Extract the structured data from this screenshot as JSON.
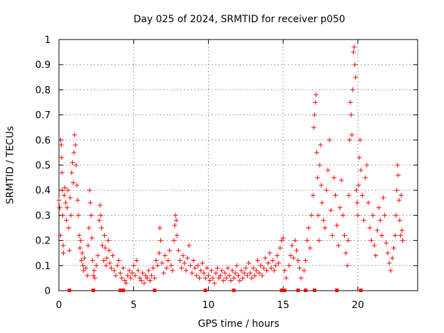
{
  "chart_data": {
    "type": "scatter",
    "title": "Day 025 of 2024, SRMTID for receiver p050",
    "xlabel": "GPS time / hours",
    "ylabel": "SRMTID / TECUs",
    "xlim": [
      0,
      24
    ],
    "ylim": [
      0,
      1
    ],
    "xticks": [
      0,
      5,
      10,
      15,
      20
    ],
    "xtick_labels": [
      "0",
      "5",
      "10",
      "15",
      "20"
    ],
    "yticks": [
      0,
      0.1,
      0.2,
      0.3,
      0.4,
      0.5,
      0.6,
      0.7,
      0.8,
      0.9,
      1
    ],
    "ytick_labels": [
      "0",
      "0.1",
      "0.2",
      "0.3",
      "0.4",
      "0.5",
      "0.6",
      "0.7",
      "0.8",
      "0.9",
      "1"
    ],
    "grid": true,
    "marker": "+",
    "color": "#ff0000",
    "series": [
      {
        "name": "SRMTID",
        "points": [
          [
            0.0,
            0.36
          ],
          [
            0.05,
            0.33
          ],
          [
            0.1,
            0.22
          ],
          [
            0.12,
            0.6
          ],
          [
            0.15,
            0.58
          ],
          [
            0.18,
            0.53
          ],
          [
            0.2,
            0.47
          ],
          [
            0.22,
            0.4
          ],
          [
            0.25,
            0.3
          ],
          [
            0.28,
            0.18
          ],
          [
            0.3,
            0.15
          ],
          [
            0.35,
            0.38
          ],
          [
            0.4,
            0.41
          ],
          [
            0.45,
            0.35
          ],
          [
            0.5,
            0.28
          ],
          [
            0.55,
            0.33
          ],
          [
            0.6,
            0.4
          ],
          [
            0.65,
            0.25
          ],
          [
            0.7,
            0.16
          ],
          [
            0.75,
            0.37
          ],
          [
            0.8,
            0.3
          ],
          [
            0.85,
            0.47
          ],
          [
            0.9,
            0.51
          ],
          [
            0.95,
            0.43
          ],
          [
            1.0,
            0.55
          ],
          [
            1.05,
            0.62
          ],
          [
            1.1,
            0.58
          ],
          [
            1.15,
            0.5
          ],
          [
            1.2,
            0.42
          ],
          [
            1.25,
            0.36
          ],
          [
            1.3,
            0.3
          ],
          [
            1.35,
            0.22
          ],
          [
            1.4,
            0.17
          ],
          [
            1.45,
            0.2
          ],
          [
            1.5,
            0.12
          ],
          [
            1.55,
            0.15
          ],
          [
            1.6,
            0.1
          ],
          [
            1.65,
            0.08
          ],
          [
            1.7,
            0.13
          ],
          [
            1.8,
            0.09
          ],
          [
            1.9,
            0.06
          ],
          [
            1.95,
            0.18
          ],
          [
            2.0,
            0.25
          ],
          [
            2.05,
            0.4
          ],
          [
            2.1,
            0.35
          ],
          [
            2.15,
            0.3
          ],
          [
            2.2,
            0.21
          ],
          [
            2.25,
            0.12
          ],
          [
            2.3,
            0.06
          ],
          [
            2.35,
            0.08
          ],
          [
            2.4,
            0.05
          ],
          [
            2.5,
            0.1
          ],
          [
            2.6,
            0.14
          ],
          [
            2.7,
            0.28
          ],
          [
            2.75,
            0.34
          ],
          [
            2.8,
            0.3
          ],
          [
            2.85,
            0.25
          ],
          [
            2.9,
            0.18
          ],
          [
            3.0,
            0.12
          ],
          [
            3.05,
            0.22
          ],
          [
            3.1,
            0.17
          ],
          [
            3.15,
            0.1
          ],
          [
            3.2,
            0.13
          ],
          [
            3.3,
            0.2
          ],
          [
            3.35,
            0.16
          ],
          [
            3.4,
            0.11
          ],
          [
            3.5,
            0.09
          ],
          [
            3.6,
            0.14
          ],
          [
            3.7,
            0.08
          ],
          [
            3.8,
            0.06
          ],
          [
            3.9,
            0.1
          ],
          [
            4.0,
            0.12
          ],
          [
            4.1,
            0.07
          ],
          [
            4.2,
            0.05
          ],
          [
            4.3,
            0.09
          ],
          [
            4.4,
            0.04
          ],
          [
            4.5,
            0.03
          ],
          [
            4.6,
            0.06
          ],
          [
            4.7,
            0.08
          ],
          [
            4.8,
            0.05
          ],
          [
            4.9,
            0.07
          ],
          [
            5.0,
            0.1
          ],
          [
            5.1,
            0.06
          ],
          [
            5.2,
            0.12
          ],
          [
            5.3,
            0.08
          ],
          [
            5.4,
            0.05
          ],
          [
            5.5,
            0.04
          ],
          [
            5.6,
            0.07
          ],
          [
            5.7,
            0.03
          ],
          [
            5.8,
            0.06
          ],
          [
            5.9,
            0.05
          ],
          [
            6.0,
            0.08
          ],
          [
            6.1,
            0.04
          ],
          [
            6.2,
            0.06
          ],
          [
            6.3,
            0.09
          ],
          [
            6.4,
            0.05
          ],
          [
            6.5,
            0.12
          ],
          [
            6.6,
            0.1
          ],
          [
            6.7,
            0.15
          ],
          [
            6.75,
            0.25
          ],
          [
            6.8,
            0.2
          ],
          [
            6.9,
            0.11
          ],
          [
            7.0,
            0.07
          ],
          [
            7.1,
            0.14
          ],
          [
            7.2,
            0.09
          ],
          [
            7.3,
            0.12
          ],
          [
            7.4,
            0.16
          ],
          [
            7.5,
            0.1
          ],
          [
            7.6,
            0.08
          ],
          [
            7.7,
            0.2
          ],
          [
            7.75,
            0.26
          ],
          [
            7.8,
            0.3
          ],
          [
            7.85,
            0.28
          ],
          [
            7.9,
            0.22
          ],
          [
            8.0,
            0.16
          ],
          [
            8.1,
            0.12
          ],
          [
            8.2,
            0.09
          ],
          [
            8.3,
            0.14
          ],
          [
            8.4,
            0.11
          ],
          [
            8.5,
            0.08
          ],
          [
            8.6,
            0.13
          ],
          [
            8.7,
            0.18
          ],
          [
            8.8,
            0.1
          ],
          [
            8.9,
            0.07
          ],
          [
            9.0,
            0.12
          ],
          [
            9.1,
            0.09
          ],
          [
            9.2,
            0.06
          ],
          [
            9.3,
            0.1
          ],
          [
            9.4,
            0.05
          ],
          [
            9.5,
            0.08
          ],
          [
            9.6,
            0.11
          ],
          [
            9.7,
            0.07
          ],
          [
            9.8,
            0.05
          ],
          [
            9.9,
            0.09
          ],
          [
            10.0,
            0.06
          ],
          [
            10.1,
            0.04
          ],
          [
            10.2,
            0.08
          ],
          [
            10.3,
            0.05
          ],
          [
            10.4,
            0.03
          ],
          [
            10.5,
            0.07
          ],
          [
            10.6,
            0.09
          ],
          [
            10.7,
            0.05
          ],
          [
            10.8,
            0.06
          ],
          [
            10.9,
            0.08
          ],
          [
            11.0,
            0.04
          ],
          [
            11.1,
            0.07
          ],
          [
            11.2,
            0.05
          ],
          [
            11.3,
            0.09
          ],
          [
            11.4,
            0.06
          ],
          [
            11.5,
            0.04
          ],
          [
            11.6,
            0.08
          ],
          [
            11.7,
            0.05
          ],
          [
            11.8,
            0.07
          ],
          [
            11.9,
            0.1
          ],
          [
            12.0,
            0.06
          ],
          [
            12.1,
            0.04
          ],
          [
            12.2,
            0.08
          ],
          [
            12.3,
            0.05
          ],
          [
            12.4,
            0.07
          ],
          [
            12.5,
            0.09
          ],
          [
            12.6,
            0.06
          ],
          [
            12.7,
            0.11
          ],
          [
            12.8,
            0.07
          ],
          [
            12.9,
            0.05
          ],
          [
            13.0,
            0.09
          ],
          [
            13.1,
            0.06
          ],
          [
            13.2,
            0.08
          ],
          [
            13.3,
            0.12
          ],
          [
            13.4,
            0.07
          ],
          [
            13.5,
            0.1
          ],
          [
            13.6,
            0.06
          ],
          [
            13.7,
            0.09
          ],
          [
            13.8,
            0.13
          ],
          [
            13.9,
            0.08
          ],
          [
            14.0,
            0.11
          ],
          [
            14.1,
            0.15
          ],
          [
            14.2,
            0.09
          ],
          [
            14.3,
            0.12
          ],
          [
            14.4,
            0.08
          ],
          [
            14.5,
            0.1
          ],
          [
            14.6,
            0.14
          ],
          [
            14.7,
            0.11
          ],
          [
            14.8,
            0.17
          ],
          [
            14.9,
            0.2
          ],
          [
            15.0,
            0.21
          ],
          [
            15.1,
            0.08
          ],
          [
            15.2,
            0.05
          ],
          [
            15.4,
            0.1
          ],
          [
            15.5,
            0.14
          ],
          [
            15.6,
            0.18
          ],
          [
            15.7,
            0.13
          ],
          [
            15.8,
            0.2
          ],
          [
            15.9,
            0.16
          ],
          [
            16.0,
            0.12
          ],
          [
            16.1,
            0.09
          ],
          [
            16.2,
            0.05
          ],
          [
            16.4,
            0.08
          ],
          [
            16.5,
            0.12
          ],
          [
            16.6,
            0.2
          ],
          [
            16.7,
            0.25
          ],
          [
            16.8,
            0.17
          ],
          [
            16.9,
            0.3
          ],
          [
            17.0,
            0.38
          ],
          [
            17.05,
            0.65
          ],
          [
            17.1,
            0.7
          ],
          [
            17.15,
            0.75
          ],
          [
            17.2,
            0.78
          ],
          [
            17.25,
            0.55
          ],
          [
            17.3,
            0.45
          ],
          [
            17.35,
            0.3
          ],
          [
            17.4,
            0.2
          ],
          [
            17.45,
            0.5
          ],
          [
            17.5,
            0.58
          ],
          [
            17.55,
            0.42
          ],
          [
            17.6,
            0.35
          ],
          [
            17.7,
            0.28
          ],
          [
            17.8,
            0.25
          ],
          [
            17.9,
            0.4
          ],
          [
            18.0,
            0.48
          ],
          [
            18.1,
            0.6
          ],
          [
            18.2,
            0.32
          ],
          [
            18.3,
            0.22
          ],
          [
            18.4,
            0.45
          ],
          [
            18.5,
            0.38
          ],
          [
            18.6,
            0.26
          ],
          [
            18.7,
            0.18
          ],
          [
            18.8,
            0.33
          ],
          [
            18.9,
            0.44
          ],
          [
            19.0,
            0.3
          ],
          [
            19.1,
            0.22
          ],
          [
            19.2,
            0.15
          ],
          [
            19.3,
            0.1
          ],
          [
            19.35,
            0.2
          ],
          [
            19.4,
            0.38
          ],
          [
            19.45,
            0.6
          ],
          [
            19.5,
            0.75
          ],
          [
            19.55,
            0.7
          ],
          [
            19.6,
            0.62
          ],
          [
            19.65,
            0.8
          ],
          [
            19.7,
            0.95
          ],
          [
            19.75,
            0.97
          ],
          [
            19.8,
            0.9
          ],
          [
            19.85,
            0.85
          ],
          [
            19.9,
            0.4
          ],
          [
            19.95,
            0.35
          ],
          [
            20.0,
            0.3
          ],
          [
            20.05,
            0.42
          ],
          [
            20.1,
            0.53
          ],
          [
            20.15,
            0.6
          ],
          [
            20.2,
            0.48
          ],
          [
            20.3,
            0.38
          ],
          [
            20.4,
            0.28
          ],
          [
            20.5,
            0.45
          ],
          [
            20.6,
            0.5
          ],
          [
            20.7,
            0.35
          ],
          [
            20.8,
            0.25
          ],
          [
            20.9,
            0.2
          ],
          [
            21.0,
            0.3
          ],
          [
            21.1,
            0.18
          ],
          [
            21.2,
            0.14
          ],
          [
            21.3,
            0.24
          ],
          [
            21.4,
            0.33
          ],
          [
            21.5,
            0.28
          ],
          [
            21.6,
            0.22
          ],
          [
            21.7,
            0.37
          ],
          [
            21.8,
            0.3
          ],
          [
            21.9,
            0.19
          ],
          [
            22.0,
            0.15
          ],
          [
            22.1,
            0.11
          ],
          [
            22.2,
            0.08
          ],
          [
            22.3,
            0.13
          ],
          [
            22.4,
            0.17
          ],
          [
            22.5,
            0.22
          ],
          [
            22.55,
            0.3
          ],
          [
            22.6,
            0.4
          ],
          [
            22.65,
            0.5
          ],
          [
            22.7,
            0.46
          ],
          [
            22.75,
            0.36
          ],
          [
            22.8,
            0.28
          ],
          [
            22.85,
            0.22
          ],
          [
            22.9,
            0.38
          ],
          [
            22.95,
            0.24
          ],
          [
            23.0,
            0.2
          ]
        ]
      }
    ],
    "zero_markers_x": [
      0.7,
      2.3,
      4.1,
      4.3,
      6.4,
      9.8,
      11.7,
      14.9,
      15.1,
      16.0,
      16.5,
      17.1,
      18.6,
      20.2
    ]
  }
}
